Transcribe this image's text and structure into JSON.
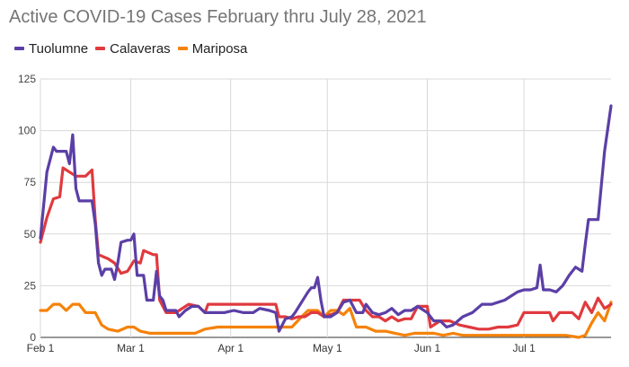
{
  "chart_data": {
    "type": "line",
    "title": "Active COVID-19 Cases February thru July 28, 2021",
    "xlabel": "",
    "ylabel": "",
    "ylim": [
      0,
      125
    ],
    "xlim": [
      "2021-02-01",
      "2021-07-28"
    ],
    "y_ticks": [
      0,
      25,
      50,
      75,
      100,
      125
    ],
    "x_ticks": [
      {
        "label": "Feb 1",
        "date": "2021-02-01"
      },
      {
        "label": "Mar 1",
        "date": "2021-03-01"
      },
      {
        "label": "Apr 1",
        "date": "2021-04-01"
      },
      {
        "label": "May 1",
        "date": "2021-05-01"
      },
      {
        "label": "Jun 1",
        "date": "2021-06-01"
      },
      {
        "label": "Jul 1",
        "date": "2021-07-01"
      }
    ],
    "grid": true,
    "legend_position": "top-left",
    "series": [
      {
        "name": "Tuolumne",
        "color": "#5b3fa6",
        "points": [
          [
            "2021-02-01",
            48
          ],
          [
            "2021-02-03",
            80
          ],
          [
            "2021-02-05",
            92
          ],
          [
            "2021-02-06",
            90
          ],
          [
            "2021-02-09",
            90
          ],
          [
            "2021-02-10",
            84
          ],
          [
            "2021-02-11",
            98
          ],
          [
            "2021-02-12",
            72
          ],
          [
            "2021-02-13",
            66
          ],
          [
            "2021-02-15",
            66
          ],
          [
            "2021-02-17",
            66
          ],
          [
            "2021-02-18",
            55
          ],
          [
            "2021-02-19",
            36
          ],
          [
            "2021-02-20",
            30
          ],
          [
            "2021-02-21",
            33
          ],
          [
            "2021-02-23",
            33
          ],
          [
            "2021-02-24",
            28
          ],
          [
            "2021-02-25",
            36
          ],
          [
            "2021-02-26",
            46
          ],
          [
            "2021-02-28",
            47
          ],
          [
            "2021-03-01",
            47
          ],
          [
            "2021-03-02",
            50
          ],
          [
            "2021-03-03",
            30
          ],
          [
            "2021-03-05",
            30
          ],
          [
            "2021-03-06",
            18
          ],
          [
            "2021-03-08",
            18
          ],
          [
            "2021-03-09",
            32
          ],
          [
            "2021-03-10",
            20
          ],
          [
            "2021-03-11",
            18
          ],
          [
            "2021-03-12",
            13
          ],
          [
            "2021-03-15",
            13
          ],
          [
            "2021-03-16",
            10
          ],
          [
            "2021-03-18",
            13
          ],
          [
            "2021-03-20",
            15
          ],
          [
            "2021-03-22",
            15
          ],
          [
            "2021-03-24",
            12
          ],
          [
            "2021-03-27",
            12
          ],
          [
            "2021-03-30",
            12
          ],
          [
            "2021-04-02",
            13
          ],
          [
            "2021-04-05",
            12
          ],
          [
            "2021-04-08",
            12
          ],
          [
            "2021-04-10",
            14
          ],
          [
            "2021-04-13",
            13
          ],
          [
            "2021-04-15",
            12
          ],
          [
            "2021-04-16",
            3
          ],
          [
            "2021-04-18",
            9
          ],
          [
            "2021-04-20",
            10
          ],
          [
            "2021-04-21",
            12
          ],
          [
            "2021-04-23",
            17
          ],
          [
            "2021-04-25",
            22
          ],
          [
            "2021-04-26",
            24
          ],
          [
            "2021-04-27",
            24
          ],
          [
            "2021-04-28",
            29
          ],
          [
            "2021-04-29",
            18
          ],
          [
            "2021-04-30",
            10
          ],
          [
            "2021-05-02",
            10
          ],
          [
            "2021-05-04",
            12
          ],
          [
            "2021-05-06",
            17
          ],
          [
            "2021-05-08",
            18
          ],
          [
            "2021-05-10",
            12
          ],
          [
            "2021-05-12",
            12
          ],
          [
            "2021-05-13",
            16
          ],
          [
            "2021-05-15",
            12
          ],
          [
            "2021-05-17",
            11
          ],
          [
            "2021-05-19",
            12
          ],
          [
            "2021-05-21",
            14
          ],
          [
            "2021-05-23",
            11
          ],
          [
            "2021-05-25",
            13
          ],
          [
            "2021-05-27",
            13
          ],
          [
            "2021-05-29",
            15
          ],
          [
            "2021-06-01",
            12
          ],
          [
            "2021-06-03",
            8
          ],
          [
            "2021-06-05",
            8
          ],
          [
            "2021-06-07",
            5
          ],
          [
            "2021-06-09",
            6
          ],
          [
            "2021-06-12",
            10
          ],
          [
            "2021-06-15",
            12
          ],
          [
            "2021-06-18",
            16
          ],
          [
            "2021-06-21",
            16
          ],
          [
            "2021-06-23",
            17
          ],
          [
            "2021-06-25",
            18
          ],
          [
            "2021-06-27",
            20
          ],
          [
            "2021-06-29",
            22
          ],
          [
            "2021-07-01",
            23
          ],
          [
            "2021-07-03",
            23
          ],
          [
            "2021-07-05",
            24
          ],
          [
            "2021-07-06",
            35
          ],
          [
            "2021-07-07",
            23
          ],
          [
            "2021-07-09",
            23
          ],
          [
            "2021-07-11",
            22
          ],
          [
            "2021-07-13",
            25
          ],
          [
            "2021-07-15",
            30
          ],
          [
            "2021-07-17",
            34
          ],
          [
            "2021-07-18",
            33
          ],
          [
            "2021-07-19",
            32
          ],
          [
            "2021-07-20",
            45
          ],
          [
            "2021-07-21",
            57
          ],
          [
            "2021-07-24",
            57
          ],
          [
            "2021-07-26",
            90
          ],
          [
            "2021-07-28",
            112
          ]
        ]
      },
      {
        "name": "Calaveras",
        "color": "#e03a3e",
        "points": [
          [
            "2021-02-01",
            46
          ],
          [
            "2021-02-03",
            58
          ],
          [
            "2021-02-05",
            67
          ],
          [
            "2021-02-07",
            68
          ],
          [
            "2021-02-08",
            82
          ],
          [
            "2021-02-10",
            80
          ],
          [
            "2021-02-12",
            78
          ],
          [
            "2021-02-15",
            78
          ],
          [
            "2021-02-17",
            81
          ],
          [
            "2021-02-18",
            57
          ],
          [
            "2021-02-19",
            40
          ],
          [
            "2021-02-22",
            38
          ],
          [
            "2021-02-24",
            36
          ],
          [
            "2021-02-26",
            31
          ],
          [
            "2021-02-28",
            32
          ],
          [
            "2021-03-02",
            37
          ],
          [
            "2021-03-04",
            36
          ],
          [
            "2021-03-05",
            42
          ],
          [
            "2021-03-08",
            40
          ],
          [
            "2021-03-09",
            40
          ],
          [
            "2021-03-10",
            18
          ],
          [
            "2021-03-12",
            12
          ],
          [
            "2021-03-15",
            12
          ],
          [
            "2021-03-17",
            14
          ],
          [
            "2021-03-19",
            16
          ],
          [
            "2021-03-22",
            15
          ],
          [
            "2021-03-24",
            12
          ],
          [
            "2021-03-25",
            16
          ],
          [
            "2021-03-28",
            16
          ],
          [
            "2021-04-02",
            16
          ],
          [
            "2021-04-06",
            16
          ],
          [
            "2021-04-10",
            16
          ],
          [
            "2021-04-13",
            16
          ],
          [
            "2021-04-15",
            16
          ],
          [
            "2021-04-16",
            10
          ],
          [
            "2021-04-18",
            10
          ],
          [
            "2021-04-20",
            9
          ],
          [
            "2021-04-22",
            10
          ],
          [
            "2021-04-24",
            10
          ],
          [
            "2021-04-26",
            12
          ],
          [
            "2021-04-28",
            12
          ],
          [
            "2021-04-30",
            10
          ],
          [
            "2021-05-02",
            11
          ],
          [
            "2021-05-04",
            12
          ],
          [
            "2021-05-06",
            18
          ],
          [
            "2021-05-09",
            18
          ],
          [
            "2021-05-11",
            18
          ],
          [
            "2021-05-13",
            13
          ],
          [
            "2021-05-15",
            10
          ],
          [
            "2021-05-17",
            10
          ],
          [
            "2021-05-19",
            8
          ],
          [
            "2021-05-21",
            10
          ],
          [
            "2021-05-23",
            8
          ],
          [
            "2021-05-25",
            9
          ],
          [
            "2021-05-27",
            9
          ],
          [
            "2021-05-29",
            15
          ],
          [
            "2021-06-01",
            15
          ],
          [
            "2021-06-02",
            5
          ],
          [
            "2021-06-05",
            8
          ],
          [
            "2021-06-08",
            8
          ],
          [
            "2021-06-11",
            6
          ],
          [
            "2021-06-14",
            5
          ],
          [
            "2021-06-17",
            4
          ],
          [
            "2021-06-20",
            4
          ],
          [
            "2021-06-23",
            5
          ],
          [
            "2021-06-26",
            5
          ],
          [
            "2021-06-29",
            6
          ],
          [
            "2021-07-01",
            12
          ],
          [
            "2021-07-03",
            12
          ],
          [
            "2021-07-05",
            12
          ],
          [
            "2021-07-07",
            12
          ],
          [
            "2021-07-09",
            12
          ],
          [
            "2021-07-10",
            8
          ],
          [
            "2021-07-12",
            12
          ],
          [
            "2021-07-14",
            12
          ],
          [
            "2021-07-16",
            12
          ],
          [
            "2021-07-18",
            9
          ],
          [
            "2021-07-20",
            17
          ],
          [
            "2021-07-22",
            12
          ],
          [
            "2021-07-24",
            19
          ],
          [
            "2021-07-26",
            14
          ],
          [
            "2021-07-28",
            16
          ]
        ]
      },
      {
        "name": "Mariposa",
        "color": "#f5820a",
        "points": [
          [
            "2021-02-01",
            13
          ],
          [
            "2021-02-03",
            13
          ],
          [
            "2021-02-05",
            16
          ],
          [
            "2021-02-07",
            16
          ],
          [
            "2021-02-09",
            13
          ],
          [
            "2021-02-11",
            16
          ],
          [
            "2021-02-13",
            16
          ],
          [
            "2021-02-15",
            12
          ],
          [
            "2021-02-18",
            12
          ],
          [
            "2021-02-20",
            6
          ],
          [
            "2021-02-22",
            4
          ],
          [
            "2021-02-25",
            3
          ],
          [
            "2021-02-28",
            5
          ],
          [
            "2021-03-02",
            5
          ],
          [
            "2021-03-04",
            3
          ],
          [
            "2021-03-07",
            2
          ],
          [
            "2021-03-12",
            2
          ],
          [
            "2021-03-17",
            2
          ],
          [
            "2021-03-21",
            2
          ],
          [
            "2021-03-24",
            4
          ],
          [
            "2021-03-28",
            5
          ],
          [
            "2021-04-02",
            5
          ],
          [
            "2021-04-07",
            5
          ],
          [
            "2021-04-12",
            5
          ],
          [
            "2021-04-16",
            5
          ],
          [
            "2021-04-20",
            5
          ],
          [
            "2021-04-23",
            10
          ],
          [
            "2021-04-25",
            13
          ],
          [
            "2021-04-28",
            13
          ],
          [
            "2021-04-30",
            10
          ],
          [
            "2021-05-02",
            13
          ],
          [
            "2021-05-04",
            13
          ],
          [
            "2021-05-06",
            11
          ],
          [
            "2021-05-08",
            14
          ],
          [
            "2021-05-10",
            5
          ],
          [
            "2021-05-13",
            5
          ],
          [
            "2021-05-16",
            3
          ],
          [
            "2021-05-19",
            3
          ],
          [
            "2021-05-22",
            2
          ],
          [
            "2021-05-25",
            1
          ],
          [
            "2021-05-28",
            2
          ],
          [
            "2021-05-31",
            2
          ],
          [
            "2021-06-03",
            2
          ],
          [
            "2021-06-06",
            1
          ],
          [
            "2021-06-09",
            2
          ],
          [
            "2021-06-12",
            1
          ],
          [
            "2021-06-16",
            1
          ],
          [
            "2021-06-20",
            1
          ],
          [
            "2021-06-24",
            1
          ],
          [
            "2021-06-28",
            1
          ],
          [
            "2021-07-02",
            1
          ],
          [
            "2021-07-06",
            1
          ],
          [
            "2021-07-10",
            1
          ],
          [
            "2021-07-14",
            1
          ],
          [
            "2021-07-18",
            0
          ],
          [
            "2021-07-20",
            1
          ],
          [
            "2021-07-22",
            7
          ],
          [
            "2021-07-24",
            12
          ],
          [
            "2021-07-26",
            8
          ],
          [
            "2021-07-28",
            17
          ]
        ]
      }
    ]
  }
}
